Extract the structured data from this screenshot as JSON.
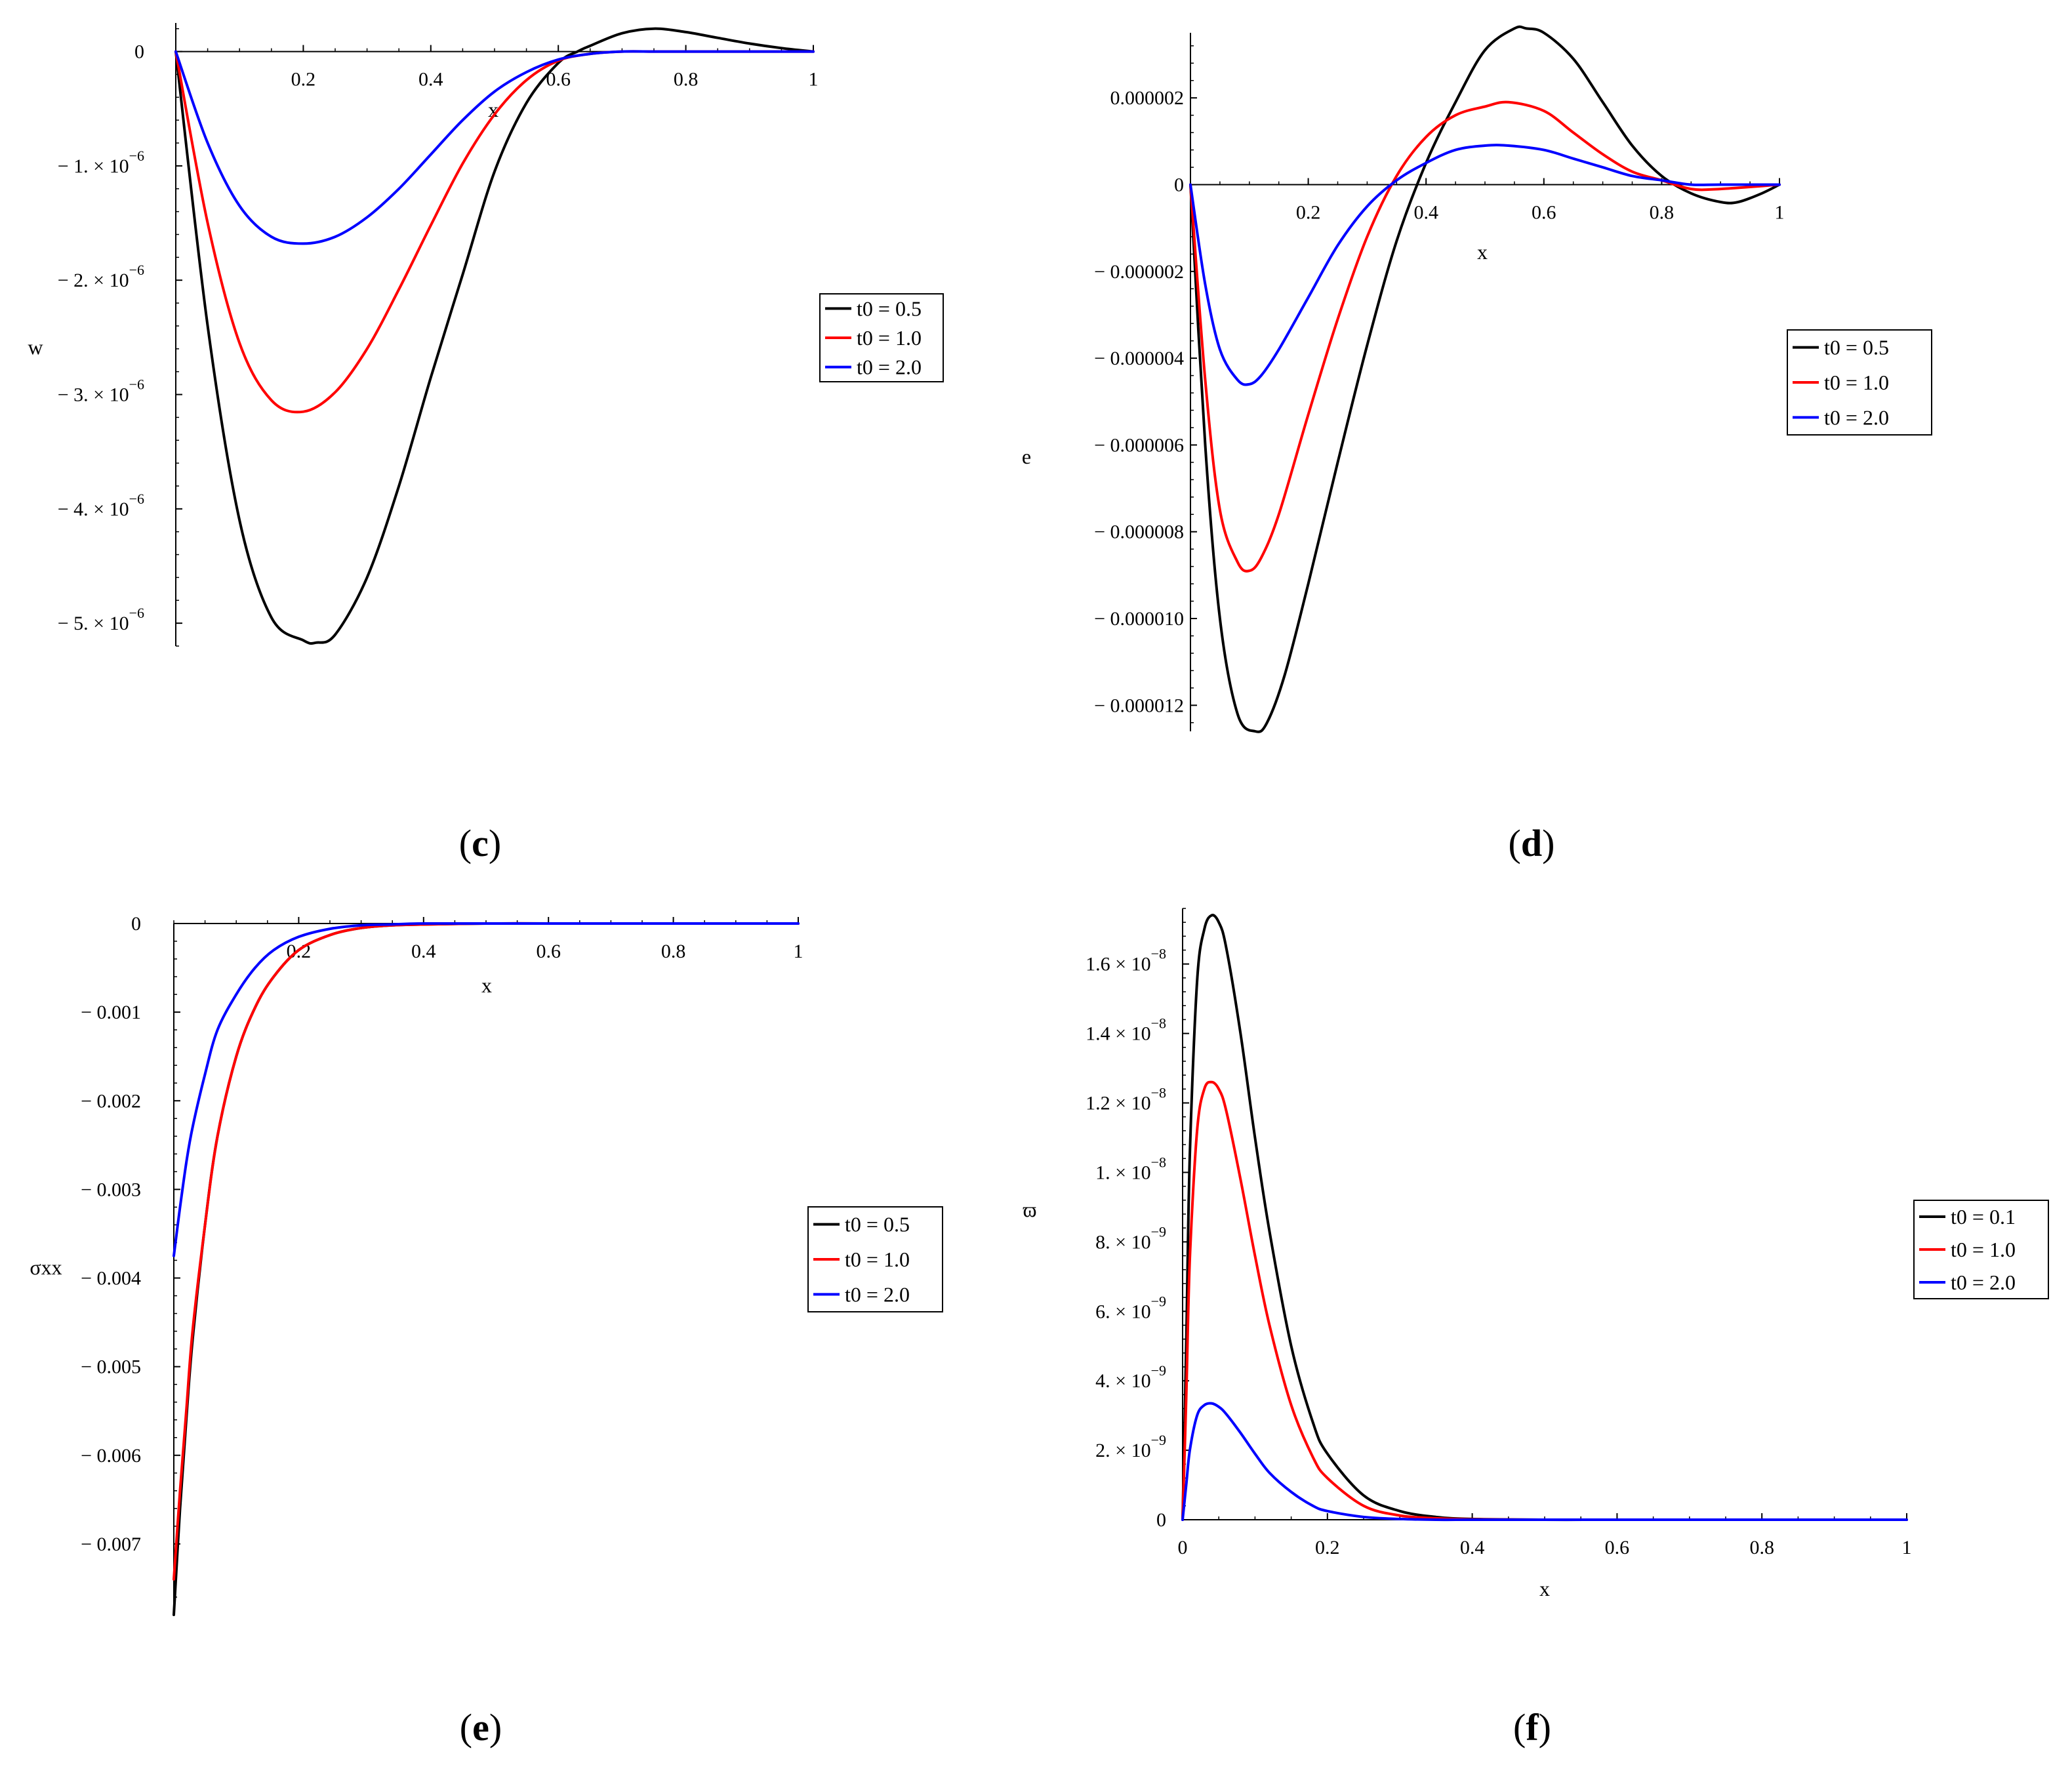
{
  "chart_data": [
    {
      "id": "c",
      "type": "line",
      "panel_label": "c",
      "title": "",
      "xlabel": "x",
      "ylabel": "w",
      "xlim": [
        0,
        1
      ],
      "ylim": [
        -5.2e-06,
        2.5e-07
      ],
      "x_ticks": [
        0.2,
        0.4,
        0.6,
        0.8,
        1
      ],
      "x_tick_labels": [
        "0.2",
        "0.4",
        "0.6",
        "0.8",
        "1"
      ],
      "y_ticks": [
        0,
        -1e-06,
        -2e-06,
        -3e-06,
        -4e-06,
        -5e-06
      ],
      "y_tick_labels": [
        {
          "m": "0",
          "e": ""
        },
        {
          "m": "− 1. × 10",
          "e": "−6"
        },
        {
          "m": "− 2. × 10",
          "e": "−6"
        },
        {
          "m": "− 3. × 10",
          "e": "−6"
        },
        {
          "m": "− 4. × 10",
          "e": "−6"
        },
        {
          "m": "− 5. × 10",
          "e": "−6"
        }
      ],
      "legend_position": "right",
      "series": [
        {
          "name": "t0 = 0.5",
          "color": "#000000",
          "x": [
            0,
            0.05,
            0.1,
            0.15,
            0.2,
            0.22,
            0.25,
            0.3,
            0.35,
            0.4,
            0.45,
            0.5,
            0.55,
            0.6,
            0.63,
            0.65,
            0.7,
            0.75,
            0.8,
            0.85,
            0.9,
            0.95,
            1.0
          ],
          "y": [
            0,
            -2.4e-06,
            -4.1e-06,
            -4.95e-06,
            -5.15e-06,
            -5.17e-06,
            -5.1e-06,
            -4.6e-06,
            -3.8e-06,
            -2.85e-06,
            -1.95e-06,
            -1.05e-06,
            -4.5e-07,
            -1e-07,
            0,
            5e-08,
            1.6e-07,
            2e-07,
            1.7e-07,
            1.2e-07,
            7e-08,
            3e-08,
            0
          ]
        },
        {
          "name": "t0 = 1.0",
          "color": "#ff0000",
          "x": [
            0,
            0.05,
            0.1,
            0.15,
            0.2,
            0.25,
            0.3,
            0.35,
            0.4,
            0.45,
            0.5,
            0.55,
            0.6,
            0.65,
            0.7,
            0.75,
            0.8,
            0.85,
            0.9,
            1.0
          ],
          "y": [
            0,
            -1.5e-06,
            -2.55e-06,
            -3.05e-06,
            -3.15e-06,
            -2.98e-06,
            -2.6e-06,
            -2.08e-06,
            -1.52e-06,
            -9.8e-07,
            -5.5e-07,
            -2.5e-07,
            -8e-08,
            -2e-08,
            0,
            0,
            0,
            0,
            0,
            0
          ]
        },
        {
          "name": "t0 = 2.0",
          "color": "#0000ff",
          "x": [
            0,
            0.05,
            0.1,
            0.15,
            0.2,
            0.25,
            0.3,
            0.35,
            0.4,
            0.45,
            0.5,
            0.55,
            0.6,
            0.65,
            0.7,
            0.75,
            0.8,
            0.85,
            0.9,
            1.0
          ],
          "y": [
            0,
            -8e-07,
            -1.35e-06,
            -1.62e-06,
            -1.68e-06,
            -1.62e-06,
            -1.45e-06,
            -1.2e-06,
            -9e-07,
            -6e-07,
            -3.5e-07,
            -1.8e-07,
            -7e-08,
            -2e-08,
            0,
            0,
            0,
            0,
            0,
            0
          ]
        }
      ]
    },
    {
      "id": "d",
      "type": "line",
      "panel_label": "d",
      "title": "",
      "xlabel": "x",
      "ylabel": "e",
      "xlim": [
        0,
        1
      ],
      "ylim": [
        -1.26e-05,
        3.5e-06
      ],
      "x_ticks": [
        0.2,
        0.4,
        0.6,
        0.8,
        1
      ],
      "x_tick_labels": [
        "0.2",
        "0.4",
        "0.6",
        "0.8",
        "1"
      ],
      "y_ticks": [
        2e-06,
        0,
        -2e-06,
        -4e-06,
        -6e-06,
        -8e-06,
        -1e-05,
        -1.2e-05
      ],
      "y_tick_labels": [
        {
          "m": "0.000002",
          "e": ""
        },
        {
          "m": "0",
          "e": ""
        },
        {
          "m": "− 0.000002",
          "e": ""
        },
        {
          "m": "− 0.000004",
          "e": ""
        },
        {
          "m": "− 0.000006",
          "e": ""
        },
        {
          "m": "− 0.000008",
          "e": ""
        },
        {
          "m": "− 0.000010",
          "e": ""
        },
        {
          "m": "− 0.000012",
          "e": ""
        }
      ],
      "legend_position": "right",
      "series": [
        {
          "name": "t0 = 0.5",
          "color": "#000000",
          "x": [
            0,
            0.025,
            0.05,
            0.08,
            0.11,
            0.13,
            0.16,
            0.2,
            0.25,
            0.3,
            0.35,
            0.4,
            0.45,
            0.5,
            0.55,
            0.57,
            0.6,
            0.65,
            0.7,
            0.75,
            0.8,
            0.85,
            0.9,
            0.93,
            0.97,
            1.0
          ],
          "y": [
            0,
            -6e-06,
            -1e-05,
            -1.22e-05,
            -1.26e-05,
            -1.24e-05,
            -1.13e-05,
            -9.2e-06,
            -6.4e-06,
            -3.7e-06,
            -1.3e-06,
            5e-07,
            1.9e-06,
            3.1e-06,
            3.6e-06,
            3.6e-06,
            3.5e-06,
            2.9e-06,
            1.9e-06,
            9e-07,
            2e-07,
            -2e-07,
            -4e-07,
            -4e-07,
            -2e-07,
            0
          ]
        },
        {
          "name": "t0 = 1.0",
          "color": "#ff0000",
          "x": [
            0,
            0.025,
            0.05,
            0.08,
            0.1,
            0.12,
            0.15,
            0.2,
            0.25,
            0.3,
            0.35,
            0.4,
            0.45,
            0.5,
            0.54,
            0.6,
            0.65,
            0.7,
            0.75,
            0.8,
            0.85,
            0.9,
            1.0
          ],
          "y": [
            0,
            -4.5e-06,
            -7.5e-06,
            -8.7e-06,
            -8.9e-06,
            -8.6e-06,
            -7.6e-06,
            -5.3e-06,
            -3.1e-06,
            -1.2e-06,
            2e-07,
            1.1e-06,
            1.6e-06,
            1.8e-06,
            1.9e-06,
            1.7e-06,
            1.2e-06,
            7e-07,
            3e-07,
            1e-07,
            -1e-07,
            -1e-07,
            0
          ]
        },
        {
          "name": "t0 = 2.0",
          "color": "#0000ff",
          "x": [
            0,
            0.025,
            0.05,
            0.08,
            0.1,
            0.12,
            0.15,
            0.2,
            0.25,
            0.3,
            0.35,
            0.4,
            0.45,
            0.5,
            0.54,
            0.6,
            0.65,
            0.7,
            0.75,
            0.8,
            0.85,
            0.9,
            1.0
          ],
          "y": [
            0,
            -2.3e-06,
            -3.8e-06,
            -4.5e-06,
            -4.6e-06,
            -4.4e-06,
            -3.8e-06,
            -2.6e-06,
            -1.4e-06,
            -5e-07,
            1e-07,
            5e-07,
            8e-07,
            9e-07,
            9e-07,
            8e-07,
            6e-07,
            4e-07,
            2e-07,
            1e-07,
            0,
            0,
            0
          ]
        }
      ]
    },
    {
      "id": "e",
      "type": "line",
      "panel_label": "e",
      "title": "",
      "xlabel": "x",
      "ylabel": "σxx",
      "xlim": [
        0,
        1
      ],
      "ylim": [
        -0.0078,
        0
      ],
      "x_ticks": [
        0.2,
        0.4,
        0.6,
        0.8,
        1
      ],
      "x_tick_labels": [
        "0.2",
        "0.4",
        "0.6",
        "0.8",
        "1"
      ],
      "y_ticks": [
        0,
        -0.001,
        -0.002,
        -0.003,
        -0.004,
        -0.005,
        -0.006,
        -0.007
      ],
      "y_tick_labels": [
        {
          "m": "0",
          "e": ""
        },
        {
          "m": "− 0.001",
          "e": ""
        },
        {
          "m": "− 0.002",
          "e": ""
        },
        {
          "m": "− 0.003",
          "e": ""
        },
        {
          "m": "− 0.004",
          "e": ""
        },
        {
          "m": "− 0.005",
          "e": ""
        },
        {
          "m": "− 0.006",
          "e": ""
        },
        {
          "m": "− 0.007",
          "e": ""
        }
      ],
      "legend_position": "right",
      "series": [
        {
          "name": "t0 = 0.5",
          "color": "#000000",
          "x": [
            0,
            0.01,
            0.02,
            0.03,
            0.05,
            0.07,
            0.1,
            0.13,
            0.16,
            0.2,
            0.25,
            0.3,
            0.35,
            0.4,
            0.5,
            0.6,
            0.7,
            0.8,
            1.0
          ],
          "y": [
            -0.0078,
            -0.0066,
            -0.0056,
            -0.0047,
            -0.0034,
            -0.0024,
            -0.0015,
            -0.00095,
            -0.0006,
            -0.0003,
            -0.00013,
            -5e-05,
            -2e-05,
            -1e-05,
            0,
            0,
            0,
            0,
            0
          ]
        },
        {
          "name": "t0 = 1.0",
          "color": "#ff0000",
          "x": [
            0,
            0.01,
            0.02,
            0.03,
            0.05,
            0.07,
            0.1,
            0.13,
            0.16,
            0.2,
            0.25,
            0.3,
            0.35,
            0.4,
            0.5,
            0.6,
            0.7,
            0.8,
            1.0
          ],
          "y": [
            -0.0074,
            -0.0064,
            -0.0055,
            -0.0046,
            -0.0034,
            -0.0024,
            -0.0015,
            -0.00095,
            -0.0006,
            -0.0003,
            -0.00013,
            -5e-05,
            -2e-05,
            -1e-05,
            0,
            0,
            0,
            0,
            0
          ]
        },
        {
          "name": "t0 = 2.0",
          "color": "#0000ff",
          "x": [
            0,
            0.01,
            0.02,
            0.03,
            0.05,
            0.07,
            0.1,
            0.13,
            0.16,
            0.2,
            0.25,
            0.3,
            0.35,
            0.4,
            0.5,
            0.6,
            0.7,
            0.8,
            1.0
          ],
          "y": [
            -0.00375,
            -0.0032,
            -0.0027,
            -0.0023,
            -0.0017,
            -0.0012,
            -0.0008,
            -0.0005,
            -0.0003,
            -0.00015,
            -6e-05,
            -2e-05,
            -1e-05,
            0,
            0,
            0,
            0,
            0,
            0
          ]
        }
      ]
    },
    {
      "id": "f",
      "type": "line",
      "panel_label": "f",
      "title": "",
      "xlabel": "x",
      "ylabel": "ϖ",
      "xlim": [
        0,
        1
      ],
      "ylim": [
        0,
        1.76e-08
      ],
      "x_ticks": [
        0,
        0.2,
        0.4,
        0.6,
        0.8,
        1
      ],
      "x_tick_labels": [
        "0",
        "0.2",
        "0.4",
        "0.6",
        "0.8",
        "1"
      ],
      "y_ticks": [
        0,
        2e-09,
        4e-09,
        6e-09,
        8e-09,
        1e-08,
        1.2e-08,
        1.4e-08,
        1.6e-08
      ],
      "y_tick_labels": [
        {
          "m": "0",
          "e": ""
        },
        {
          "m": "2. × 10",
          "e": "−9"
        },
        {
          "m": "4. × 10",
          "e": "−9"
        },
        {
          "m": "6. × 10",
          "e": "−9"
        },
        {
          "m": "8. × 10",
          "e": "−9"
        },
        {
          "m": "1. × 10",
          "e": "−8"
        },
        {
          "m": "1.2 × 10",
          "e": "−8"
        },
        {
          "m": "1.4 × 10",
          "e": "−8"
        },
        {
          "m": "1.6 × 10",
          "e": "−8"
        }
      ],
      "legend_position": "right",
      "series": [
        {
          "name": "t0 = 0.1",
          "color": "#000000",
          "x": [
            0,
            0.005,
            0.01,
            0.02,
            0.03,
            0.04,
            0.05,
            0.06,
            0.08,
            0.1,
            0.12,
            0.15,
            0.18,
            0.2,
            0.25,
            0.3,
            0.35,
            0.4,
            0.5,
            0.6,
            0.8,
            1.0
          ],
          "y": [
            0,
            5e-09,
            1.05e-08,
            1.55e-08,
            1.7e-08,
            1.74e-08,
            1.72e-08,
            1.65e-08,
            1.4e-08,
            1.1e-08,
            8.3e-09,
            5e-09,
            2.8e-09,
            1.9e-09,
            7e-10,
            2.5e-10,
            8e-11,
            2e-11,
            0,
            0,
            0,
            0
          ]
        },
        {
          "name": "t0 = 1.0",
          "color": "#ff0000",
          "x": [
            0,
            0.005,
            0.01,
            0.02,
            0.03,
            0.04,
            0.05,
            0.06,
            0.08,
            0.1,
            0.12,
            0.15,
            0.18,
            0.2,
            0.25,
            0.3,
            0.35,
            0.4,
            0.5,
            0.6,
            0.8,
            1.0
          ],
          "y": [
            0,
            3.5e-09,
            7.5e-09,
            1.12e-08,
            1.24e-08,
            1.26e-08,
            1.24e-08,
            1.18e-08,
            9.8e-09,
            7.6e-09,
            5.6e-09,
            3.3e-09,
            1.8e-09,
            1.2e-09,
            4e-10,
            1.2e-10,
            4e-11,
            1e-11,
            0,
            0,
            0,
            0
          ]
        },
        {
          "name": "t0 = 2.0",
          "color": "#0000ff",
          "x": [
            0,
            0.005,
            0.01,
            0.02,
            0.03,
            0.04,
            0.05,
            0.06,
            0.08,
            0.1,
            0.12,
            0.15,
            0.18,
            0.2,
            0.25,
            0.3,
            0.35,
            0.4,
            0.5,
            0.6,
            0.8,
            1.0
          ],
          "y": [
            0,
            1e-09,
            2e-09,
            3e-09,
            3.3e-09,
            3.35e-09,
            3.25e-09,
            3.05e-09,
            2.5e-09,
            1.9e-09,
            1.35e-09,
            8e-10,
            4e-10,
            2.5e-10,
            8e-11,
            2e-11,
            0,
            0,
            0,
            0,
            0,
            0
          ]
        }
      ]
    }
  ]
}
